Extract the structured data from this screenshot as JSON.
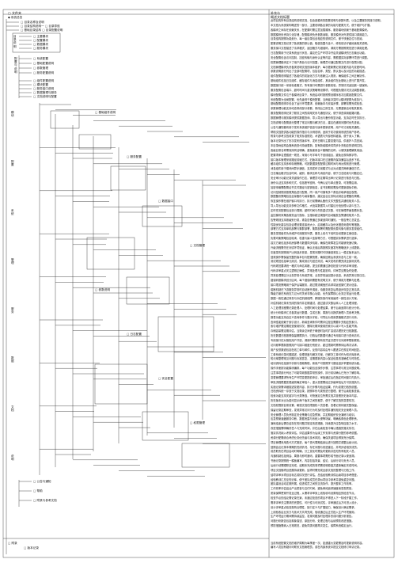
{
  "header": {
    "tree_title": "▢ 文件夹",
    "right_title": "补充与",
    "desc_heading": "概述文档标题"
  },
  "tree": {
    "root": "◆ 系统总览",
    "top_items": [
      {
        "label": "▢ 目录名称及说明"
      },
      {
        "label": "▢ 目录结构说明一 ▢ 目录导航"
      },
      {
        "label": "▢ 基础目录结构 ▢ 目录配置说明"
      }
    ],
    "group_a": {
      "label": "目录说明",
      "items": [
        "▢ 主要模块",
        "▢ 配置模块",
        "▢ 数据模块",
        "▢ 服务模块"
      ]
    },
    "group_b": {
      "label": "配置与说明",
      "items": [
        "▢ 系统配置",
        "▢ 基础配置说明",
        "▢ 参数管理",
        "▢ 服务配置说明"
      ]
    },
    "section_labels": [
      "模块",
      "配置",
      "系统",
      "管理",
      "服务",
      "数据",
      "文档",
      "说明"
    ],
    "mid_items": [
      "▢ 组件配置说明",
      "▢ 模块配置",
      "▢ 服务接口说明",
      "▢ 数据管理与服务",
      "▢ 文档说明与配置"
    ],
    "deep_items": [
      "▢ 基础组件说明",
      "▢ 服务配置",
      "▢ 数据接口",
      "▢ 文档管理",
      "▢ 参数说明",
      "▢ 日志配置",
      "▢ 安全配置",
      "▢ 权限管理"
    ],
    "bottom_items": [
      "▢ 公告与通知",
      "▢ 帮助",
      "▢ 附录与参考文档"
    ],
    "footer_root": "▢ 附录",
    "footer_items": [
      "▢ 版本记录"
    ]
  },
  "description_lines": [
    "此项目的所有目录结构说明文档，包含各模块的配置说明与参数列表，以及主要服务的接口说明。",
    "本文档为系统架构概述的一部分，主要说明各目录的功能与配置方式，便于维护与扩展。",
    "各模块之间存在依赖关系，在配置时需注意加载顺序，服务模块依赖于基础配置模块。",
    "数据模块负责持久化存储，配置模块负责参数读取，服务模块对外提供接口调用能力。",
    "目录结构按照功能划分，每一级目录包含相应的说明文件，便于快速定位与查阅。",
    "配置说明文档记录了各参数的默认值、取值范围与含义，修改前请仔细阅读相关说明。",
    "服务接口文档描述了请求格式、返回格式与错误码，调用方需按照规范进行调用处理。",
    "日志配置用于记录系统运行状态，建议在生产环境中开启关键模块的日志输出功能。",
    "安全配置包含访问控制、加密传输与身份认证等内容，需根据实际部署环境进行调整。",
    "权限管理模块定义了用户角色与访问范围，管理员可通过配置文件进行权限分配。",
    "文档管理模块负责各类说明文档的版本维护，每次更新需记录变更内容与变更时间。",
    "参数说明部分列出了全部可配置项，包括名称、类型、默认值以及对应的功能描述。",
    "组件配置说明描述了各组件的初始化方式与依赖注入规则，确保组件之间正确协作。",
    "基础组件包括日志组件、缓存组件与消息组件，其余组件在此基础上进行扩展开发。",
    "数据接口统一采用标准格式，所有接口均需进行参数校验，异常情况返回统一错误码。",
    "服务配置包含端口、超时时间与重试策略等设置项，可根据负载情况灵活调整参数。",
    "模块配置文件位于各模块目录下，系统启动时按照预设顺序依次加载各配置文件。",
    "系统配置为全局配置，优先级低于模块配置，当两者冲突时以模块配置为准执行。",
    "基础配置说明中包含了运行环境要求、依赖版本与安装步骤，部署前需完成检查。",
    "参数管理功能支持动态修改部分参数，修改后立即生效，无需重新启动相关服务。",
    "服务配置说明记录了服务之间的调用关系与通信协议，便于排查调用链路问题。",
    "数据管理与服务模块提供数据查询、导入导出与备份恢复功能，支持定时任务执行。",
    "文档说明与配置部分整理了常见问题与解决方法，建议在遇到问题时优先查阅。",
    "公告与通知模块用于发布系统维护信息与版本更新说明，用户可订阅相关通知。",
    "帮助文档提供各功能的操作指引与示例说明，适用于初次使用系统的用户参考。",
    "附录与参考文档收录了相关标准规范、术语表与外部资料链接，便于深入了解。",
    "版本记录列出了历次发布的版本号、发布日期与主要变更内容，供维护人员查阅。",
    "本目录树结构会随系统迭代持续更新，如有新增模块将同步补充相应的说明文档。",
    "各级目录名称需保持简洁明确，避免使用含义模糊的名称，以便快速理解其用途。",
    "配置项命名遵循统一规范，采用小写字母与下划线组合，避免出现特殊字符。",
    "接口版本管理采用路径前缀方式，旧版本接口在过渡期内保持兼容后逐步下线。",
    "缓存组件支持多种存储策略，可按数据类型配置过期时间与淘汰规则进行管理。",
    "消息组件用于模块间异步通信，支持发布订阅模式与点对点模式两种通信方式。",
    "日志输出格式包含时间、级别、模块名称与消息内容，便于日志检索与问题定位。",
    "安全审计功能记录关键操作日志，管理员可定期导出审计记录进行核查与归档。",
    "身份认证支持多种方式，包括账号密码、令牌认证与单点登录，可按需启用。",
    "加密传输需配置证书文件路径与密钥信息，证书到期前需及时更新避免中断。",
    "访问控制规则按照角色进行配置，同一用户可拥有多个角色并继承相应权限。",
    "数据备份策略包括全量备份与增量备份，建议结合业务特点制定合理备份周期。",
    "恢复操作需在维护窗口内执行，执行前需确认备份文件完整性并通知相关人员。",
    "导入导出功能支持多种文件格式，大批量数据导入时建议分批处理以减少压力。",
    "定时任务配置包含执行周期、超时时间与失败重试次数，可在管理界面查看状态。",
    "监控模块采集各服务运行指标，当指标超过阈值时自动触发告警通知相关人员。",
    "告警规则支持按级别分类，紧急告警通过多渠道同时通知，一般告警汇总发送。",
    "性能优化建议包括合理设置连接池大小、启用缓存以及优化慢查询语句等措施。",
    "部署方式支持单机部署与集群部署，集群部署时需配置负载均衡与服务发现组件。",
    "服务发现组件负责维护可用服务列表，服务上线与下线时自动更新注册信息。",
    "负载均衡策略包括轮询、权重与最少连接等方式，可根据实际需求进行选择。",
    "容灾方案包括多机房部署与数据同步机制，确保在故障发生时能够快速切换。",
    "升级流程需先在测试环境验证，确认无误后再按照灰度发布策略逐步上线更新。",
    "灰度发布按照用户比例逐步放量，发现问题时可快速回滚至上一稳定版本运行。",
    "回滚操作需保留完整的版本包与配置快照，确保回滚后系统状态与之前一致。",
    "测试规范包括单元测试、集成测试与回归测试，每次发布前需完成全部测试项。",
    "代码规范要求统一格式与命名风格，提交前需通过静态检查与代码评审流程。",
    "代码评审重点关注逻辑正确性、异常处理与性能影响，评审意见需及时处理。",
    "异常处理需区分业务异常与系统异常，业务异常返回提示信息，系统异常记录日志。",
    "错误码按模块划分区间，每个错误码需配有说明文字，便于调用方理解与处理。",
    "接口限流策略用于保护后端服务，超过限流阈值的请求将返回繁忙提示信息。",
    "熔断机制在下游服务异常时自动断开调用，待服务恢复后再逐步恢复正常请求。",
    "降级方案在系统压力过大时关闭非核心功能，优先保障核心业务正常运行处理。",
    "数据一致性通过事务与补偿机制保障，跨服务操作采用最终一致性设计方案。",
    "补偿机制记录未完成的操作并定期重试，超过重试次数后转入人工处理流程。",
    "人工处理流程需记录处理人、处理时间与处理结果，便于后续追溯与统计分析。",
    "统计分析模块汇总各类运行数据，生成日报、周报与月报供管理人员参考决策。",
    "报表功能支持自定义查询条件与展示字段，可导出为常用表格格式进行分析。",
    "查询性能依赖于索引设计，新增查询条件时需评估是否需要补充相应的索引。",
    "索引维护需定期检查使用情况，删除长期未使用的索引以减少写入性能开销。",
    "存储容量需定期评估，当剩余空间低于阈值时及时扩容或清理历史归档数据。",
    "历史数据归档按照保留期限执行，归档后的数据可通过专用接口进行查询访问。",
    "专用接口仅对授权用户开放，调用时需携带有效凭证并遵守访问频率限制规则。",
    "访问频率限制按照用户与接口维度分别统计，超过限制时需等待后再次请求。",
    "用户反馈渠道包括在线工单与邮件，反馈内容将由专人跟进并在规定时间回复。",
    "工单系统记录问题描述、处理进度与解决方案，已解决工单可作为知识库参考。",
    "知识库整理常见问题与标准答复，定期更新内容以保证信息的准确性与时效性。",
    "培训资料包括操作手册与视频教程，新用户可按照学习路径逐步掌握系统功能。",
    "操作手册按功能模块编排，每个功能包含操作步骤、注意事项与常见问题说明。",
    "注意事项部分列出了可能导致数据异常的操作，执行前请确认已充分了解影响。",
    "变更管理要求所有生产环境变更提前申请，审批通过后在指定时间窗口内执行。",
    "审批流程根据变更级别确定审批人，重大变更需经过多级审批后方可实施执行。",
    "实施记录需详细描述变更内容、执行步骤与验证结果，作为变更归档的依据。",
    "归档资料统一存放于文档目录，按照年份与类别进行整理，便于后续检索查阅。",
    "检索功能支持关键字与分类筛选，可快速定位所需文档并查看历史版本内容。",
    "历史版本对比功能可显示两个版本之间的差异，便于了解文档的变更情况。",
    "文档权限按目录设置，敏感文档仅限授权人员查看，查看记录将被完整保留。",
    "保留记录定期审查，发现异常访问行为时及时处理并通知相关安全管理人员。",
    "安全管理人员负责制定安全策略与应急预案，并定期组织安全演练与培训。",
    "应急预案涵盖服务中断、数据泄露与系统入侵等场景，明确各角色处理职责。",
    "演练结束后需总结存在的问题并制定改进措施，持续提升应急响应能力水平。",
    "改进措施需明确责任人与完成时间，并在后续检查中确认措施的落实情况。",
    "落实情况纳入考核评估，评估结果作为后续工作安排与资源分配的参考依据。",
    "资源分配需综合考虑业务优先级与技术风险，确保关键项目得到充分保障。",
    "项目管理采用迭代方式推进，每个迭代周期结束后进行回顾并调整后续计划。",
    "回顾会议记录本周期的完成情况、存在问题与改进建议，并同步给相关成员。",
    "成员职责在项目启动时明确，分工变化时需及时更新并告知所有相关人员。",
    "沟通机制包括例会、周报与即时通讯，重要事项需形成书面记录以便追溯。",
    "书面记录按照统一模板编写，内容包括背景、结论、后续行动与负责人员。",
    "后续行动需跟踪至完成，逾期未完成的事项需说明原因并重新确定完成时间。",
    "项目文档随项目进展持续更新，结项时需完成全部文档的整理与归档工作。",
    "结项评审对项目目标达成情况进行评估，总结经验教训供后续项目参考借鉴。",
    "经验教训汇总至知识库，便于团队成员在类似项目中参考并避免重复问题。",
    "团队建设活动定期开展，促进成员之间的交流协作，提升整体工作效率。",
    "工作效率评估结合产出质量与交付时间，避免单纯追求速度而忽视质量。",
    "质量保障贯穿开发全过程，从需求评审到上线验收均设置相应的检查节点。",
    "检查节点的结论需记录在案，未通过检查的项目不得进入下一阶段开展工作。",
    "需求评审关注需求的完整性、可行性与可测试性，评审通过后方可进入设计。",
    "设计评审重点检查架构合理性、接口定义与扩展能力，确保设计满足需求。",
    "上线验收由业务方与技术方共同完成，验收通过后正式投入生产环境使用。",
    "生产环境运行期间需持续监控，发现问题及时处理并形成问题分析报告。",
    "问题分析报告包括现象描述、原因分析、处理过程与后续预防改进措施。",
    "预防措施需纳入日常规范，避免同类问题再次发生，保障系统稳定运行。"
  ],
  "footnote_lines": [
    "当前系统配置文档的维护周期为每季度一次，如遇重大变更需及时更新说明内容。",
    "编写人员如有疑问可联系文档管理员，或在内部系统中提交文档修订申请记录。"
  ]
}
